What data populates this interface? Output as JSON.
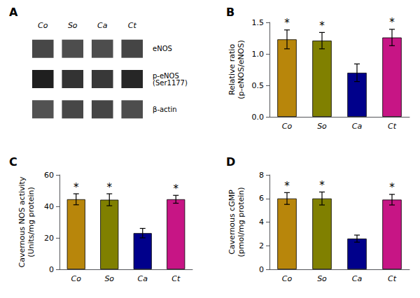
{
  "chart_data": [
    {
      "type": "heatmap",
      "title": "A",
      "categories": [
        "Co",
        "So",
        "Ca",
        "Ct"
      ],
      "rows": [
        "eNOS",
        "p-eNOS\n(Ser1177)",
        "β-actin"
      ],
      "cells": [
        [
          0.28,
          0.3,
          0.3,
          0.27
        ],
        [
          0.12,
          0.2,
          0.22,
          0.15
        ],
        [
          0.32,
          0.28,
          0.27,
          0.3
        ]
      ]
    },
    {
      "type": "bar",
      "title": "B",
      "categories": [
        "Co",
        "So",
        "Ca",
        "Ct"
      ],
      "values": [
        1.23,
        1.21,
        0.7,
        1.26
      ],
      "errors": [
        0.15,
        0.13,
        0.14,
        0.13
      ],
      "colors": [
        "#B8860B",
        "#808000",
        "#00008B",
        "#C71585"
      ],
      "ylabel": "Relative ratio\n(p-eNOS/eNOS)",
      "ylim": [
        0,
        1.5
      ],
      "yticks": [
        {
          "value": 0,
          "label": "0.0"
        },
        0.5,
        {
          "value": 1,
          "label": "1.0"
        },
        1.5
      ],
      "annotations": [
        {
          "category": "Co",
          "text": "*"
        },
        {
          "category": "So",
          "text": "*"
        },
        {
          "category": "Ct",
          "text": "*"
        }
      ],
      "grid": false
    },
    {
      "type": "bar",
      "title": "C",
      "categories": [
        "Co",
        "So",
        "Ca",
        "Ct"
      ],
      "values": [
        44.5,
        44.2,
        23.0,
        44.5
      ],
      "errors": [
        3.5,
        3.8,
        3.0,
        2.5
      ],
      "colors": [
        "#B8860B",
        "#808000",
        "#00008B",
        "#C71585"
      ],
      "ylabel": "Cavernous NOS activity\n(Units/mg protein)",
      "ylim": [
        0,
        60
      ],
      "yticks": [
        0,
        20,
        40,
        60
      ],
      "annotations": [
        {
          "category": "Co",
          "text": "*"
        },
        {
          "category": "So",
          "text": "*"
        },
        {
          "category": "Ct",
          "text": "*"
        }
      ],
      "grid": false
    },
    {
      "type": "bar",
      "title": "D",
      "categories": [
        "Co",
        "So",
        "Ca",
        "Ct"
      ],
      "values": [
        6.0,
        6.0,
        2.6,
        5.9
      ],
      "errors": [
        0.5,
        0.55,
        0.3,
        0.45
      ],
      "colors": [
        "#B8860B",
        "#808000",
        "#00008B",
        "#C71585"
      ],
      "ylabel": "Cavernous cGMP\n(pmol/mg protein)",
      "ylim": [
        0,
        8
      ],
      "yticks": [
        0,
        2,
        4,
        6,
        8
      ],
      "annotations": [
        {
          "category": "Co",
          "text": "*"
        },
        {
          "category": "So",
          "text": "*"
        },
        {
          "category": "Ct",
          "text": "*"
        }
      ],
      "grid": false
    }
  ]
}
